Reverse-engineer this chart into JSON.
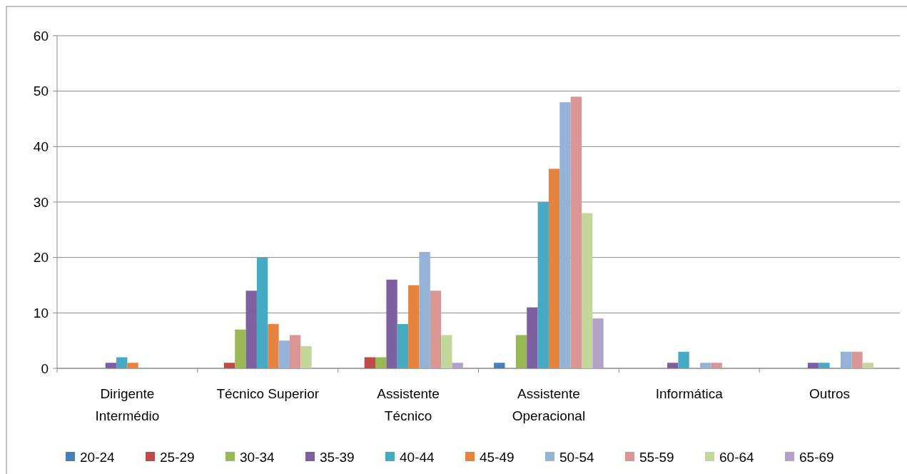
{
  "chart_data": {
    "type": "bar",
    "categories": [
      "Dirigente Intermédio",
      "Técnico Superior",
      "Assistente Técnico",
      "Assistente Operacional",
      "Informática",
      "Outros"
    ],
    "series": [
      {
        "name": "20-24",
        "color": "#4a7ebb",
        "values": [
          0,
          0,
          0,
          1,
          0,
          0
        ]
      },
      {
        "name": "25-29",
        "color": "#be4b48",
        "values": [
          0,
          1,
          2,
          0,
          0,
          0
        ]
      },
      {
        "name": "30-34",
        "color": "#98b954",
        "values": [
          0,
          7,
          2,
          6,
          0,
          0
        ]
      },
      {
        "name": "35-39",
        "color": "#7d60a0",
        "values": [
          1,
          14,
          16,
          11,
          1,
          1
        ]
      },
      {
        "name": "40-44",
        "color": "#46aac5",
        "values": [
          2,
          20,
          8,
          30,
          3,
          1
        ]
      },
      {
        "name": "45-49",
        "color": "#e6843f",
        "values": [
          1,
          8,
          15,
          36,
          0,
          0
        ]
      },
      {
        "name": "50-54",
        "color": "#95b3d7",
        "values": [
          0,
          5,
          21,
          48,
          1,
          3
        ]
      },
      {
        "name": "55-59",
        "color": "#d99694",
        "values": [
          0,
          6,
          14,
          49,
          1,
          3
        ]
      },
      {
        "name": "60-64",
        "color": "#c3d69b",
        "values": [
          0,
          4,
          6,
          28,
          0,
          1
        ]
      },
      {
        "name": "65-69",
        "color": "#b3a2c7",
        "values": [
          0,
          0,
          1,
          9,
          0,
          0
        ]
      }
    ],
    "ylim": [
      0,
      60
    ],
    "yticks": [
      0,
      10,
      20,
      30,
      40,
      50,
      60
    ],
    "grid": "y",
    "legend": "bottom"
  }
}
